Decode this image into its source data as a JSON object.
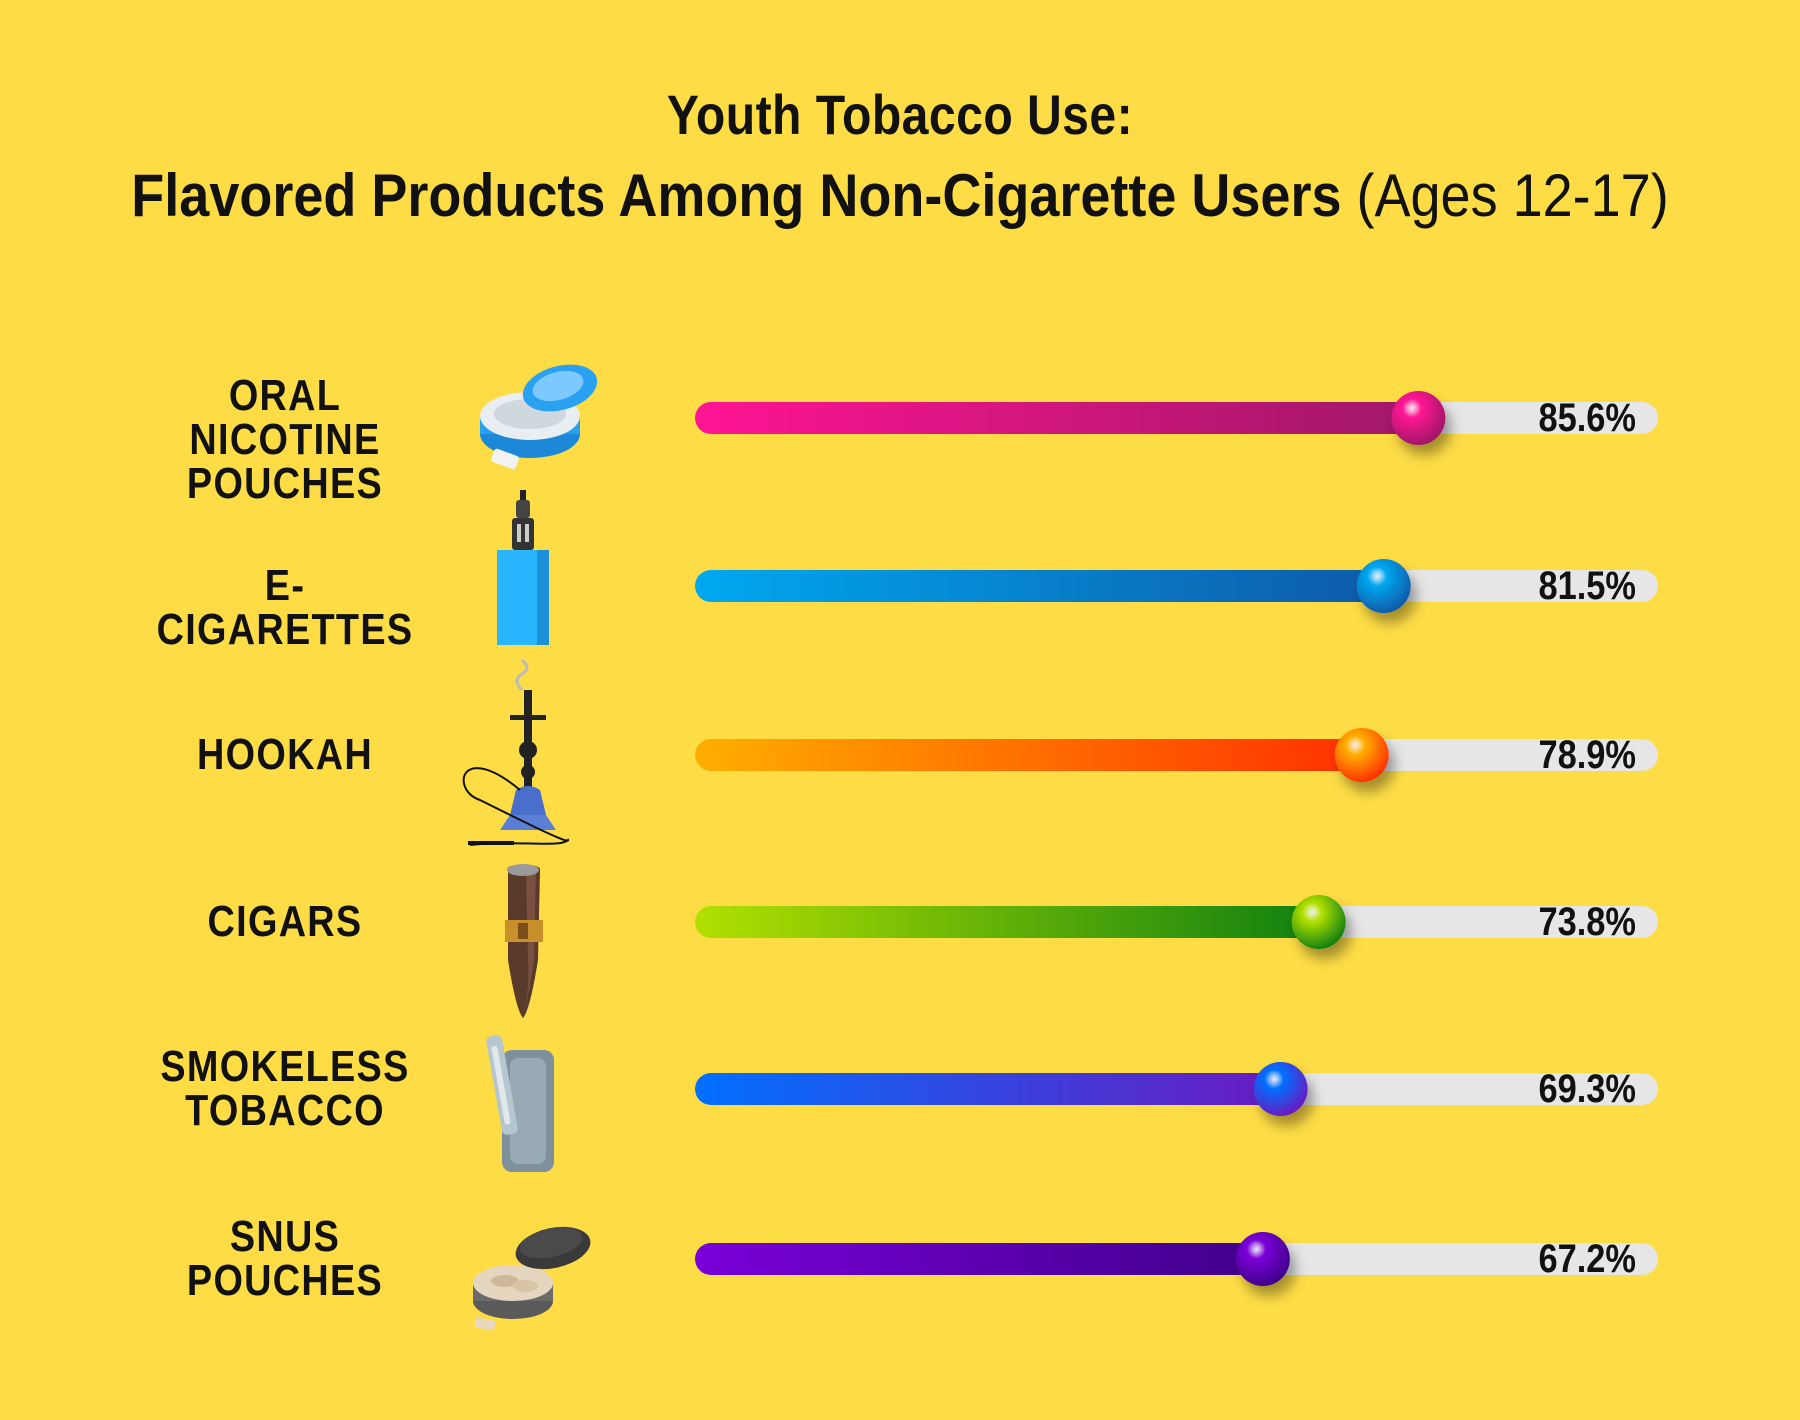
{
  "title": "Youth Tobacco Use:",
  "subtitle_main": "Flavored Products Among Non-Cigarette Users",
  "subtitle_suffix": "(Ages 12-17)",
  "chart_data": {
    "type": "bar",
    "orientation": "horizontal",
    "title": "Youth Tobacco Use:",
    "subtitle": "Flavored Products Among Non-Cigarette Users (Ages 12-17)",
    "xlim": [
      0,
      100
    ],
    "grid": false,
    "categories": [
      "ORAL NICOTINE\nPOUCHES",
      "E-CIGARETTES",
      "HOOKAH",
      "CIGARS",
      "SMOKELESS\nTOBACCO",
      "SNUS\nPOUCHES"
    ],
    "values": [
      85.6,
      81.5,
      78.9,
      73.8,
      69.3,
      67.2
    ],
    "value_labels": [
      "85.6%",
      "81.5%",
      "78.9%",
      "73.8%",
      "69.3%",
      "67.2%"
    ],
    "icons": [
      "oral-nicotine-pouch-tin-icon",
      "e-cigarette-vape-icon",
      "hookah-icon",
      "cigar-icon",
      "heated-tobacco-device-icon",
      "snus-tin-icon"
    ],
    "colors": [
      [
        "#ff1493",
        "#a01868"
      ],
      [
        "#00a8f0",
        "#0e5aa8"
      ],
      [
        "#ffae00",
        "#ff3000"
      ],
      [
        "#b2e000",
        "#108010"
      ],
      [
        "#0070ff",
        "#6a1ac0"
      ],
      [
        "#7a00d8",
        "#40008a"
      ]
    ],
    "track_color": "#e6e6e6",
    "background": "#fddc45"
  }
}
